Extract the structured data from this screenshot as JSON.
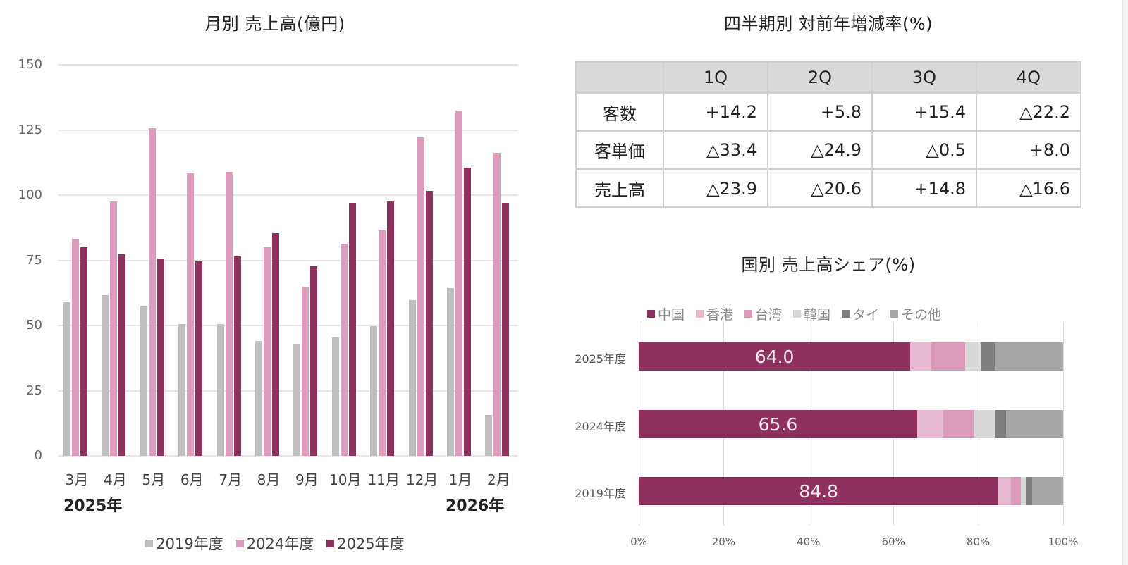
{
  "colors": {
    "fy2019": "#bfbfbf",
    "fy2024": "#dd9cbd",
    "fy2025": "#8e315e",
    "china": "#8e315e",
    "hongkong": "#e8bad1",
    "taiwan": "#dc9aba",
    "korea": "#d8d8d8",
    "thailand": "#7f7f7f",
    "other": "#a6a6a6"
  },
  "left_chart": {
    "title": "月別 売上高(億円)",
    "start_year_label": "2025年",
    "end_year_label": "2026年",
    "legend": [
      "2019年度",
      "2024年度",
      "2025年度"
    ]
  },
  "table": {
    "title": "四半期別 対前年増減率(%)",
    "headers": [
      "",
      "1Q",
      "2Q",
      "3Q",
      "4Q"
    ],
    "rows": [
      {
        "label": "客数",
        "values": [
          "+14.2",
          "+5.8",
          "+15.4",
          "△22.2"
        ]
      },
      {
        "label": "客単価",
        "values": [
          "△33.4",
          "△24.9",
          "△0.5",
          "+8.0"
        ]
      },
      {
        "label": "売上高",
        "values": [
          "△23.9",
          "△20.6",
          "+14.8",
          "△16.6"
        ]
      }
    ]
  },
  "share_chart": {
    "title": "国別 売上高シェア(%)",
    "legend": [
      "中国",
      "香港",
      "台湾",
      "韓国",
      "タイ",
      "その他"
    ]
  },
  "chart_data": [
    {
      "type": "bar",
      "title": "月別 売上高(億円)",
      "xlabel": "",
      "ylabel": "",
      "categories": [
        "3月",
        "4月",
        "5月",
        "6月",
        "7月",
        "8月",
        "9月",
        "10月",
        "11月",
        "12月",
        "1月",
        "2月"
      ],
      "series": [
        {
          "name": "2019年度",
          "values": [
            58.8,
            61.6,
            57.4,
            50.5,
            50.5,
            44.0,
            43.1,
            45.3,
            49.8,
            59.7,
            64.2,
            15.6
          ]
        },
        {
          "name": "2024年度",
          "values": [
            83.3,
            97.5,
            125.6,
            108.4,
            109.0,
            80.0,
            65.0,
            81.3,
            86.4,
            122.2,
            132.5,
            116.3
          ]
        },
        {
          "name": "2025年度",
          "values": [
            80.0,
            77.3,
            75.7,
            74.7,
            76.4,
            85.4,
            72.6,
            97.0,
            97.7,
            101.7,
            110.5,
            97.0
          ]
        }
      ],
      "yticks": [
        0,
        25,
        50,
        75,
        100,
        125,
        150
      ],
      "ylim": [
        0,
        150
      ],
      "grid": true,
      "legend_position": "bottom",
      "annotations": [
        "2025年",
        "2026年"
      ]
    },
    {
      "type": "table",
      "title": "四半期別 対前年増減率(%)",
      "columns": [
        "1Q",
        "2Q",
        "3Q",
        "4Q"
      ],
      "rows": [
        {
          "name": "客数",
          "values": [
            14.2,
            5.8,
            15.4,
            -22.2
          ]
        },
        {
          "name": "客単価",
          "values": [
            -33.4,
            -24.9,
            -0.5,
            8.0
          ]
        },
        {
          "name": "売上高",
          "values": [
            -23.9,
            -20.6,
            14.8,
            -16.6
          ]
        }
      ]
    },
    {
      "type": "bar",
      "orientation": "horizontal",
      "stacked": "percent",
      "title": "国別 売上高シェア(%)",
      "categories": [
        "2025年度",
        "2024年度",
        "2019年度"
      ],
      "series": [
        {
          "name": "中国",
          "values": [
            64.0,
            65.6,
            84.8
          ]
        },
        {
          "name": "香港",
          "values": [
            5.0,
            6.2,
            2.9
          ]
        },
        {
          "name": "台湾",
          "values": [
            7.9,
            7.3,
            2.4
          ]
        },
        {
          "name": "韓国",
          "values": [
            3.7,
            5.0,
            1.2
          ]
        },
        {
          "name": "タイ",
          "values": [
            3.3,
            2.4,
            1.4
          ]
        },
        {
          "name": "その他",
          "values": [
            16.1,
            13.5,
            7.3
          ]
        }
      ],
      "data_labels": {
        "中国": [
          "64.0",
          "65.6",
          "84.8"
        ]
      },
      "xticks": [
        "0%",
        "20%",
        "40%",
        "60%",
        "80%",
        "100%"
      ],
      "xlim": [
        0,
        100
      ],
      "grid": true,
      "legend_position": "top"
    }
  ]
}
